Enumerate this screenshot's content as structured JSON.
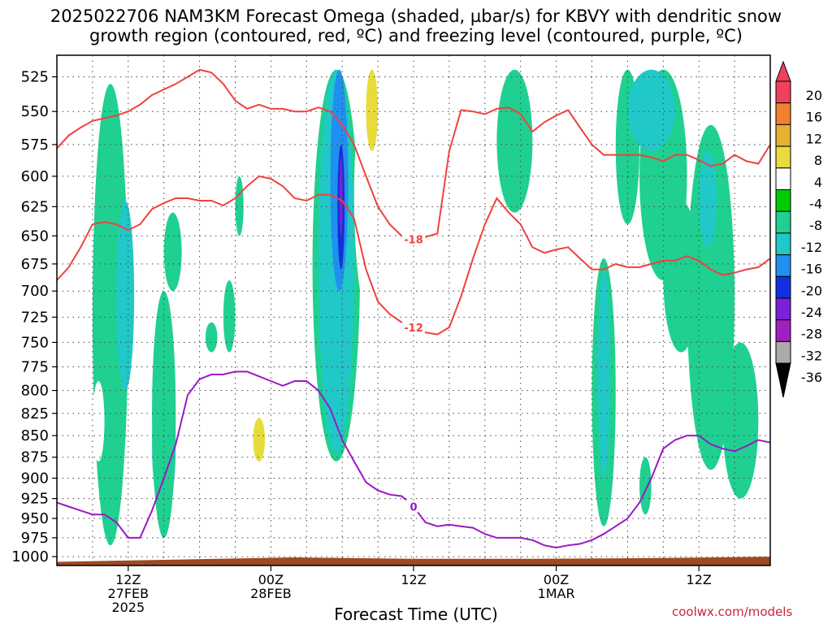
{
  "title_line1": "2025022706 NAM3KM Forecast Omega (shaded, µbar/s) for KBVY with dendritic snow",
  "title_line2": "growth region (contoured, red, ºC) and freezing level (contoured, purple, ºC)",
  "xlabel": "Forecast Time (UTC)",
  "credit": "coolwx.com/models",
  "colors": {
    "ground": "#9c4a23",
    "red_contour": "#f04040",
    "purple_contour": "#9a18c8",
    "grid": "#444444"
  },
  "chart_data": {
    "type": "heatmap",
    "yaxis": {
      "label": "",
      "ticks": [
        525,
        550,
        575,
        600,
        625,
        650,
        675,
        700,
        725,
        750,
        775,
        800,
        825,
        850,
        875,
        900,
        925,
        950,
        975,
        1000
      ],
      "range_hPa": [
        510,
        1012
      ],
      "scale": "log-pressure"
    },
    "xaxis": {
      "range_hours": [
        0,
        60
      ],
      "ticks": [
        {
          "hour": 6,
          "lines": [
            "12Z",
            "27FEB",
            "2025"
          ]
        },
        {
          "hour": 18,
          "lines": [
            "00Z",
            "28FEB"
          ]
        },
        {
          "hour": 30,
          "lines": [
            "12Z"
          ]
        },
        {
          "hour": 42,
          "lines": [
            "00Z",
            "1MAR"
          ]
        },
        {
          "hour": 54,
          "lines": [
            "12Z"
          ]
        }
      ]
    },
    "colorbar": {
      "labels": [
        20,
        16,
        12,
        8,
        4,
        -4,
        -8,
        -12,
        -16,
        -20,
        -24,
        -28,
        -32,
        -36
      ],
      "colors": [
        "#f04060",
        "#f08030",
        "#e8b030",
        "#e8dc3c",
        "#ffffff",
        "#00cc00",
        "#20d090",
        "#20c8c8",
        "#2090f0",
        "#1030e0",
        "#7a20d8",
        "#a020c0",
        "#aaaaaa",
        "#000000"
      ]
    },
    "contours": [
      {
        "name": "",
        "color": "#f04040",
        "label": "-18",
        "points": [
          [
            0,
            578
          ],
          [
            1,
            568
          ],
          [
            2,
            562
          ],
          [
            3,
            557
          ],
          [
            4,
            555
          ],
          [
            5,
            553
          ],
          [
            6,
            550
          ],
          [
            7,
            545
          ],
          [
            8,
            538
          ],
          [
            9,
            534
          ],
          [
            10,
            530
          ],
          [
            11,
            525
          ],
          [
            12,
            520
          ],
          [
            13,
            522
          ],
          [
            14,
            530
          ],
          [
            15,
            542
          ],
          [
            16,
            548
          ],
          [
            17,
            545
          ],
          [
            18,
            548
          ],
          [
            19,
            548
          ],
          [
            20,
            550
          ],
          [
            21,
            550
          ],
          [
            22,
            547
          ],
          [
            23,
            550
          ],
          [
            24,
            560
          ],
          [
            25,
            575
          ],
          [
            26,
            600
          ],
          [
            27,
            625
          ],
          [
            28,
            640
          ],
          [
            29,
            650
          ],
          [
            30,
            653
          ],
          [
            31,
            651
          ],
          [
            32,
            648
          ],
          [
            33,
            580
          ],
          [
            34,
            549
          ],
          [
            35,
            550
          ],
          [
            36,
            552
          ],
          [
            37,
            548
          ],
          [
            38,
            547
          ],
          [
            39,
            552
          ],
          [
            40,
            565
          ],
          [
            41,
            558
          ],
          [
            42,
            553
          ],
          [
            43,
            549
          ],
          [
            44,
            562
          ],
          [
            45,
            575
          ],
          [
            46,
            583
          ],
          [
            47,
            583
          ],
          [
            48,
            583
          ],
          [
            49,
            583
          ],
          [
            50,
            585
          ],
          [
            51,
            588
          ],
          [
            52,
            583
          ],
          [
            53,
            583
          ],
          [
            54,
            587
          ],
          [
            55,
            592
          ],
          [
            56,
            590
          ],
          [
            57,
            583
          ],
          [
            58,
            588
          ],
          [
            59,
            590
          ],
          [
            60,
            575
          ]
        ]
      },
      {
        "name": "",
        "color": "#f04040",
        "label": "-12",
        "points": [
          [
            0,
            690
          ],
          [
            1,
            678
          ],
          [
            2,
            660
          ],
          [
            3,
            640
          ],
          [
            4,
            638
          ],
          [
            5,
            640
          ],
          [
            6,
            645
          ],
          [
            7,
            640
          ],
          [
            8,
            627
          ],
          [
            9,
            622
          ],
          [
            10,
            618
          ],
          [
            11,
            618
          ],
          [
            12,
            620
          ],
          [
            13,
            620
          ],
          [
            14,
            624
          ],
          [
            15,
            618
          ],
          [
            16,
            608
          ],
          [
            17,
            600
          ],
          [
            18,
            602
          ],
          [
            19,
            608
          ],
          [
            20,
            618
          ],
          [
            21,
            620
          ],
          [
            22,
            615
          ],
          [
            23,
            615
          ],
          [
            24,
            620
          ],
          [
            25,
            635
          ],
          [
            26,
            680
          ],
          [
            27,
            710
          ],
          [
            28,
            722
          ],
          [
            29,
            730
          ],
          [
            30,
            735
          ],
          [
            31,
            740
          ],
          [
            32,
            742
          ],
          [
            33,
            735
          ],
          [
            34,
            705
          ],
          [
            35,
            670
          ],
          [
            36,
            640
          ],
          [
            37,
            618
          ],
          [
            38,
            630
          ],
          [
            39,
            640
          ],
          [
            40,
            660
          ],
          [
            41,
            665
          ],
          [
            42,
            662
          ],
          [
            43,
            660
          ],
          [
            44,
            670
          ],
          [
            45,
            680
          ],
          [
            46,
            680
          ],
          [
            47,
            675
          ],
          [
            48,
            678
          ],
          [
            49,
            678
          ],
          [
            50,
            675
          ],
          [
            51,
            672
          ],
          [
            52,
            672
          ],
          [
            53,
            668
          ],
          [
            54,
            672
          ],
          [
            55,
            680
          ],
          [
            56,
            685
          ],
          [
            57,
            683
          ],
          [
            58,
            680
          ],
          [
            59,
            678
          ],
          [
            60,
            670
          ]
        ]
      },
      {
        "name": "",
        "color": "#9a18c8",
        "label": "0",
        "points": [
          [
            0,
            930
          ],
          [
            1,
            935
          ],
          [
            2,
            940
          ],
          [
            3,
            945
          ],
          [
            4,
            945
          ],
          [
            5,
            955
          ],
          [
            6,
            975
          ],
          [
            7,
            975
          ],
          [
            8,
            940
          ],
          [
            9,
            900
          ],
          [
            10,
            860
          ],
          [
            11,
            805
          ],
          [
            12,
            788
          ],
          [
            13,
            783
          ],
          [
            14,
            783
          ],
          [
            15,
            780
          ],
          [
            16,
            780
          ],
          [
            17,
            785
          ],
          [
            18,
            790
          ],
          [
            19,
            795
          ],
          [
            20,
            790
          ],
          [
            21,
            790
          ],
          [
            22,
            800
          ],
          [
            23,
            820
          ],
          [
            24,
            855
          ],
          [
            25,
            880
          ],
          [
            26,
            905
          ],
          [
            27,
            915
          ],
          [
            28,
            920
          ],
          [
            29,
            922
          ],
          [
            30,
            935
          ],
          [
            31,
            955
          ],
          [
            32,
            960
          ],
          [
            33,
            958
          ],
          [
            34,
            960
          ],
          [
            35,
            962
          ],
          [
            36,
            970
          ],
          [
            37,
            975
          ],
          [
            38,
            975
          ],
          [
            39,
            975
          ],
          [
            40,
            978
          ],
          [
            41,
            985
          ],
          [
            42,
            988
          ],
          [
            43,
            985
          ],
          [
            44,
            983
          ],
          [
            45,
            978
          ],
          [
            46,
            970
          ],
          [
            47,
            960
          ],
          [
            48,
            950
          ],
          [
            49,
            930
          ],
          [
            50,
            900
          ],
          [
            51,
            865
          ],
          [
            52,
            855
          ],
          [
            53,
            850
          ],
          [
            54,
            850
          ],
          [
            55,
            860
          ],
          [
            56,
            865
          ],
          [
            57,
            868
          ],
          [
            58,
            862
          ],
          [
            59,
            855
          ],
          [
            60,
            858
          ]
        ]
      }
    ],
    "omega_regions": [
      {
        "value": -8,
        "x": [
          3,
          6
        ],
        "y": [
          530,
          985
        ]
      },
      {
        "value": -12,
        "x": [
          5,
          6.5
        ],
        "y": [
          620,
          800
        ]
      },
      {
        "value": -12,
        "x": [
          8,
          10
        ],
        "y": [
          785,
          945
        ]
      },
      {
        "value": -8,
        "x": [
          8,
          10
        ],
        "y": [
          700,
          975
        ]
      },
      {
        "value": -8,
        "x": [
          9,
          10.5
        ],
        "y": [
          630,
          700
        ]
      },
      {
        "value": -8,
        "x": [
          12.5,
          13.5
        ],
        "y": [
          730,
          760
        ]
      },
      {
        "value": -8,
        "x": [
          14,
          15
        ],
        "y": [
          690,
          760
        ]
      },
      {
        "value": -8,
        "x": [
          15,
          15.7
        ],
        "y": [
          600,
          650
        ]
      },
      {
        "value": -8,
        "x": [
          21.5,
          25.5
        ],
        "y": [
          520,
          880
        ]
      },
      {
        "value": -12,
        "x": [
          22,
          25
        ],
        "y": [
          520,
          870
        ]
      },
      {
        "value": -16,
        "x": [
          23,
          24.5
        ],
        "y": [
          520,
          700
        ]
      },
      {
        "value": -20,
        "x": [
          23.6,
          24.2
        ],
        "y": [
          575,
          680
        ]
      },
      {
        "value": -24,
        "x": [
          23.8,
          24
        ],
        "y": [
          585,
          650
        ]
      },
      {
        "value": -8,
        "x": [
          37,
          40
        ],
        "y": [
          520,
          630
        ]
      },
      {
        "value": -8,
        "x": [
          45,
          47
        ],
        "y": [
          670,
          960
        ]
      },
      {
        "value": -12,
        "x": [
          45.5,
          46.5
        ],
        "y": [
          680,
          900
        ]
      },
      {
        "value": -8,
        "x": [
          47,
          49
        ],
        "y": [
          520,
          640
        ]
      },
      {
        "value": -8,
        "x": [
          49,
          53
        ],
        "y": [
          520,
          690
        ]
      },
      {
        "value": -12,
        "x": [
          48,
          52
        ],
        "y": [
          520,
          580
        ]
      },
      {
        "value": -8,
        "x": [
          51,
          54
        ],
        "y": [
          620,
          760
        ]
      },
      {
        "value": -8,
        "x": [
          53,
          57
        ],
        "y": [
          560,
          890
        ]
      },
      {
        "value": -12,
        "x": [
          54,
          55.5
        ],
        "y": [
          580,
          660
        ]
      },
      {
        "value": -8,
        "x": [
          56,
          59
        ],
        "y": [
          750,
          925
        ]
      },
      {
        "value": -8,
        "x": [
          49,
          50
        ],
        "y": [
          875,
          945
        ]
      },
      {
        "value": 4,
        "x": [
          16,
          18
        ],
        "y": [
          810,
          930
        ]
      },
      {
        "value": 8,
        "x": [
          16.5,
          17.5
        ],
        "y": [
          830,
          880
        ]
      },
      {
        "value": 4,
        "x": [
          25,
          28
        ],
        "y": [
          520,
          730
        ]
      },
      {
        "value": 8,
        "x": [
          26,
          27
        ],
        "y": [
          520,
          580
        ]
      },
      {
        "value": 4,
        "x": [
          30,
          39
        ],
        "y": [
          760,
          955
        ]
      },
      {
        "value": 4,
        "x": [
          23,
          27
        ],
        "y": [
          890,
          960
        ]
      },
      {
        "value": 4,
        "x": [
          3,
          4
        ],
        "y": [
          790,
          880
        ]
      },
      {
        "value": 4,
        "x": [
          16,
          16.7
        ],
        "y": [
          650,
          760
        ]
      },
      {
        "value": 4,
        "x": [
          1.5,
          2.2
        ],
        "y": [
          690,
          760
        ]
      },
      {
        "value": 4,
        "x": [
          7.3,
          8
        ],
        "y": [
          880,
          940
        ]
      },
      {
        "value": 4,
        "x": [
          16,
          16.4
        ],
        "y": [
          550,
          580
        ]
      }
    ],
    "surface_pressure": [
      [
        0,
        1007
      ],
      [
        10,
        1004
      ],
      [
        20,
        1001
      ],
      [
        30,
        1003
      ],
      [
        40,
        1003
      ],
      [
        50,
        1002
      ],
      [
        60,
        1000
      ]
    ]
  }
}
